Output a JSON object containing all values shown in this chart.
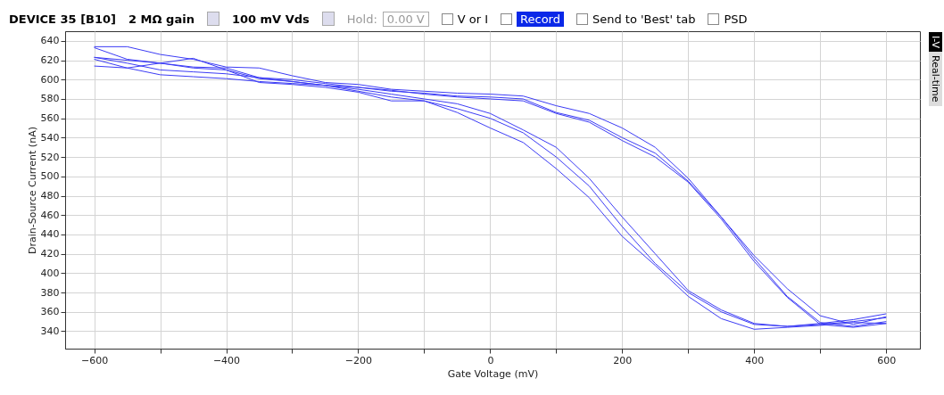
{
  "chart_data": {
    "type": "line",
    "xlabel": "Gate Voltage (mV)",
    "ylabel": "Drain-Source Current (nA)",
    "x": [
      -600,
      -550,
      -500,
      -450,
      -400,
      -350,
      -300,
      -250,
      -200,
      -150,
      -100,
      -50,
      0,
      50,
      100,
      150,
      200,
      250,
      300,
      350,
      400,
      450,
      500,
      550,
      600
    ],
    "series": [
      {
        "color": "#3c3cf5",
        "values": [
          623,
          617,
          610,
          608,
          606,
          602,
          598,
          594,
          590,
          585,
          580,
          575,
          565,
          548,
          530,
          498,
          458,
          420,
          382,
          362,
          348,
          345,
          348,
          352,
          358
        ]
      },
      {
        "color": "#3c3cf5",
        "values": [
          621,
          612,
          605,
          603,
          601,
          598,
          596,
          594,
          588,
          582,
          578,
          570,
          560,
          545,
          520,
          490,
          448,
          410,
          380,
          360,
          347,
          345,
          347,
          350,
          354
        ]
      },
      {
        "color": "#3c3cf5",
        "values": [
          614,
          612,
          617,
          622,
          610,
          597,
          595,
          592,
          587,
          578,
          578,
          566,
          550,
          535,
          508,
          478,
          438,
          408,
          376,
          353,
          342,
          344,
          346,
          349,
          348
        ]
      },
      {
        "color": "#3c3cf5",
        "values": [
          634,
          634,
          626,
          621,
          613,
          612,
          604,
          597,
          595,
          590,
          588,
          586,
          585,
          583,
          573,
          565,
          550,
          530,
          498,
          458,
          418,
          384,
          356,
          347,
          355
        ]
      },
      {
        "color": "#3c3cf5",
        "values": [
          633,
          621,
          617,
          613,
          612,
          602,
          600,
          596,
          592,
          588,
          586,
          583,
          582,
          580,
          566,
          558,
          540,
          524,
          495,
          458,
          415,
          376,
          349,
          345,
          350
        ]
      },
      {
        "color": "#3c3cf5",
        "values": [
          623,
          620,
          617,
          612,
          610,
          601,
          598,
          594,
          592,
          589,
          585,
          582,
          580,
          578,
          565,
          556,
          537,
          520,
          494,
          456,
          412,
          375,
          347,
          344,
          348
        ]
      }
    ],
    "xlim": [
      -644,
      651
    ],
    "xticks": [
      -600,
      {
        "value": -500,
        "label": null
      },
      -400,
      {
        "value": -300,
        "label": null
      },
      -200,
      {
        "value": -100,
        "label": null
      },
      0,
      {
        "value": 100,
        "label": null
      },
      200,
      {
        "value": 300,
        "label": null
      },
      400,
      {
        "value": 500,
        "label": null
      },
      600
    ],
    "ylim": [
      322,
      650
    ],
    "yticks": [
      340,
      360,
      380,
      400,
      420,
      440,
      460,
      480,
      500,
      520,
      540,
      560,
      580,
      600,
      620,
      640
    ],
    "grid": true,
    "marker": "none",
    "line_style": "solid",
    "annotations": [
      "DEVICE 35 [B10]",
      "2 MΩ gain",
      "100 mV Vds",
      "Hold:",
      "0.00 V",
      "V or I",
      "Record",
      "Send to 'Best' tab",
      "PSD",
      "I-V",
      "Real-time"
    ]
  }
}
